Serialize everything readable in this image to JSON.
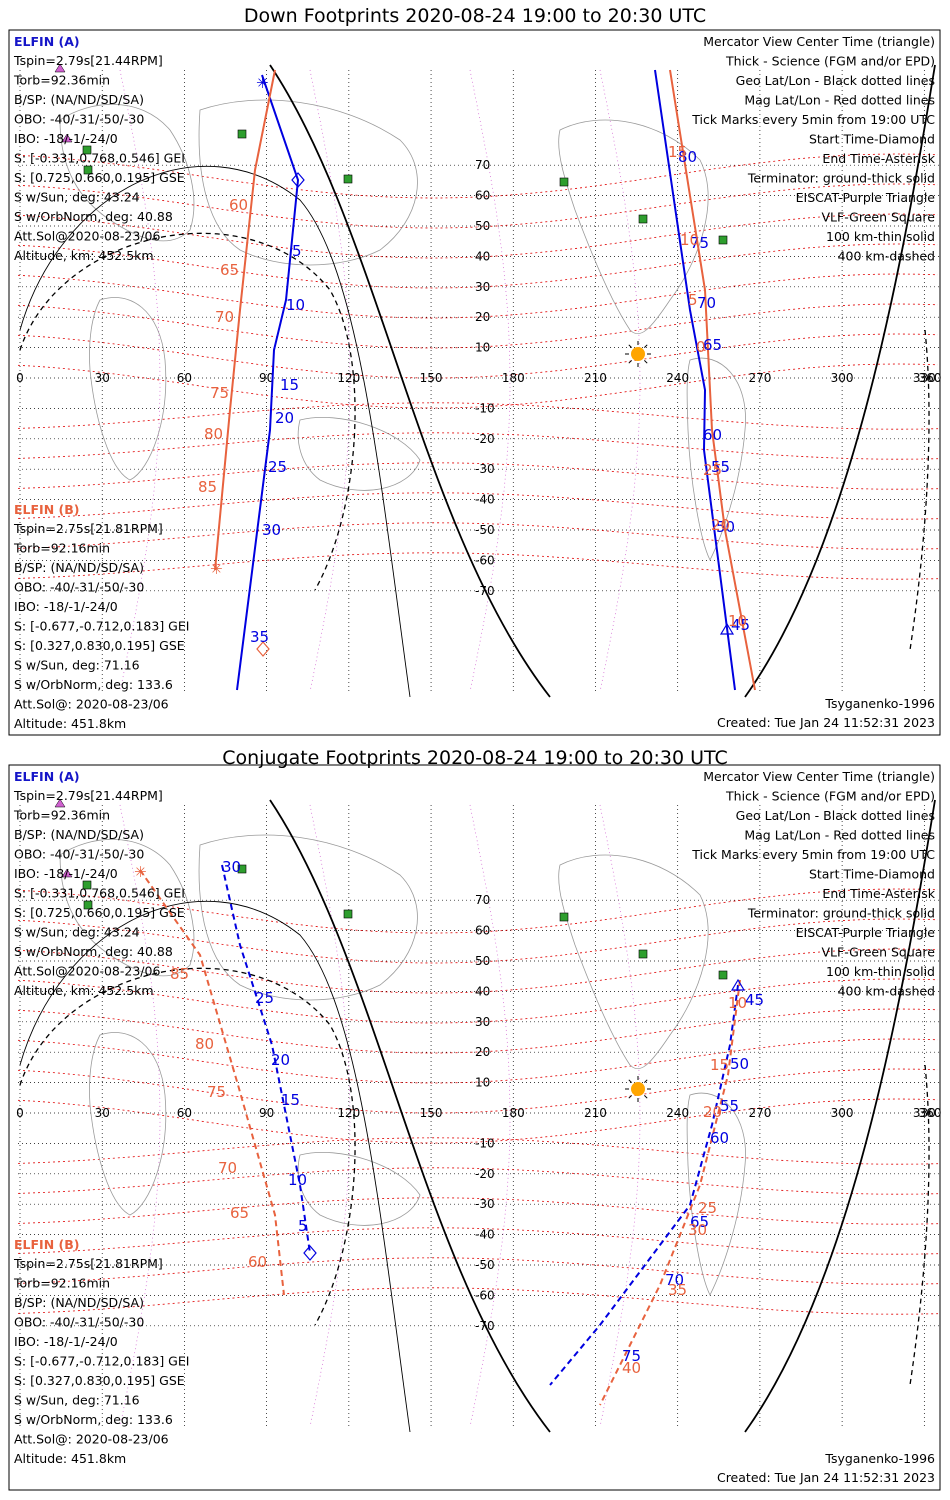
{
  "panels": [
    {
      "id": "down",
      "title": "Down Footprints 2020-08-24 19:00 to 20:30 UTC",
      "mode": "down",
      "tickA": [
        "5",
        "10",
        "15",
        "20",
        "25",
        "30",
        "35"
      ],
      "tickB": [
        "60",
        "65",
        "70",
        "75",
        "80",
        "85"
      ],
      "tickA2": [
        "80",
        "75",
        "70",
        "65",
        "60",
        "55",
        "50",
        "45"
      ],
      "tickB2": [
        "15",
        "10",
        "5",
        "0",
        "25",
        "20",
        "10"
      ]
    },
    {
      "id": "conjugate",
      "title": "Conjugate Footprints 2020-08-24 19:00 to 20:30 UTC",
      "mode": "conj",
      "tickA": [
        "30",
        "25",
        "20",
        "15",
        "10",
        "5"
      ],
      "tickB": [
        "85",
        "80",
        "75",
        "70",
        "65",
        "60"
      ],
      "tickA2": [
        "45",
        "50",
        "55",
        "60",
        "65",
        "70",
        "75"
      ],
      "tickB2": [
        "10",
        "15",
        "20",
        "25",
        "30",
        "35",
        "40"
      ]
    }
  ],
  "elfinA": {
    "header": "ELFIN (A)",
    "lines": [
      "Tspin=2.79s[21.44RPM]",
      "Torb=92.36min",
      "B/SP: (NA/ND/SD/SA)",
      "OBO: -40/-31/-50/-30",
      "IBO: -18/-1/-24/0",
      "S: [-0.331,0.768,0.546] GEI",
      "S: [0.725,0.660,0.195] GSE",
      "S w/Sun, deg: 43.24",
      "S w/OrbNorm, deg: 40.88",
      "Att.Sol@2020-08-23/06",
      "Altitude, km: 452.5km"
    ]
  },
  "elfinB": {
    "header": "ELFIN (B)",
    "lines": [
      "Tspin=2.75s[21.81RPM]",
      "Torb=92.16min",
      "B/SP: (NA/ND/SD/SA)",
      "OBO: -40/-31/-50/-30",
      "IBO: -18/-1/-24/0",
      "S: [-0.677,-0.712,0.183] GEI",
      "S: [0.327,0.830,0.195] GSE",
      "S w/Sun, deg: 71.16",
      "S w/OrbNorm, deg: 133.6",
      "Att.Sol@: 2020-08-23/06",
      "Altitude: 451.8km"
    ]
  },
  "legend": [
    {
      "text": "Mercator View Center Time (triangle)",
      "color": "#000000"
    },
    {
      "text": "Thick - Science (FGM and/or EPD)",
      "color": "#000000"
    },
    {
      "text": "Geo Lat/Lon - Black dotted lines",
      "color": "#000000"
    },
    {
      "text": "Mag Lat/Lon - Red dotted lines",
      "color": "#e00000"
    },
    {
      "text": "Tick Marks every 5min from 19:00 UTC",
      "color": "#000000"
    },
    {
      "text": "Start Time-Diamond",
      "color": "#000000"
    },
    {
      "text": "End Time-Asterisk",
      "color": "#000000"
    },
    {
      "text": "Terminator: ground-thick solid",
      "color": "#000000"
    },
    {
      "text": "EISCAT-Purple Triangle",
      "color": "#d060d0"
    },
    {
      "text": "VLF-Green Square",
      "color": "#2e9e2e"
    },
    {
      "text": "100 km-thin solid",
      "color": "#000000"
    },
    {
      "text": "400 km-dashed",
      "color": "#000000"
    }
  ],
  "lonLabels": [
    "0",
    "30",
    "60",
    "90",
    "120",
    "150",
    "180",
    "210",
    "240",
    "270",
    "300",
    "330",
    "360"
  ],
  "latLabels": [
    "70",
    "60",
    "50",
    "40",
    "30",
    "20",
    "10",
    "-10",
    "-20",
    "-30",
    "-40",
    "-50",
    "-60",
    "-70"
  ],
  "footer": {
    "model": "Tsyganenko-1996",
    "created": "Created: Tue Jan 24 11:52:31 2023"
  },
  "colors": {
    "elfinA": "#0000e0",
    "elfinB": "#e8623e",
    "magGrid": "#e00000",
    "geoGrid": "#000000",
    "eiscat": "#d060d0",
    "vlf": "#2e9e2e",
    "sun": "#ffa500"
  }
}
